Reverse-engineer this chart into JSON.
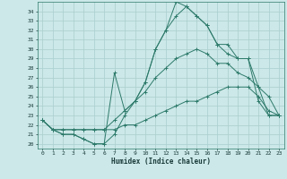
{
  "xlabel": "Humidex (Indice chaleur)",
  "bg_color": "#cce8e8",
  "line_color": "#2d7a6a",
  "grid_color": "#aacece",
  "xlim": [
    -0.5,
    23.5
  ],
  "ylim": [
    19.5,
    35.0
  ],
  "yticks": [
    20,
    21,
    22,
    23,
    24,
    25,
    26,
    27,
    28,
    29,
    30,
    31,
    32,
    33,
    34
  ],
  "xticks": [
    0,
    1,
    2,
    3,
    4,
    5,
    6,
    7,
    8,
    9,
    10,
    11,
    12,
    13,
    14,
    15,
    16,
    17,
    18,
    19,
    20,
    21,
    22,
    23
  ],
  "series": [
    [
      22.5,
      21.5,
      21.0,
      21.0,
      20.5,
      20.0,
      20.0,
      21.0,
      23.0,
      24.5,
      26.5,
      30.0,
      32.0,
      35.0,
      34.5,
      33.5,
      32.5,
      30.5,
      29.5,
      29.0,
      29.0,
      26.0,
      23.0,
      23.0
    ],
    [
      22.5,
      21.5,
      21.0,
      21.0,
      20.5,
      20.0,
      20.0,
      27.5,
      23.5,
      24.5,
      26.5,
      30.0,
      32.0,
      33.5,
      34.5,
      33.5,
      32.5,
      30.5,
      30.5,
      29.0,
      29.0,
      24.5,
      23.0,
      23.0
    ],
    [
      22.5,
      21.5,
      21.5,
      21.5,
      21.5,
      21.5,
      21.5,
      22.5,
      23.5,
      24.5,
      25.5,
      27.0,
      28.0,
      29.0,
      29.5,
      30.0,
      29.5,
      28.5,
      28.5,
      27.5,
      27.0,
      26.0,
      25.0,
      23.0
    ],
    [
      22.5,
      21.5,
      21.5,
      21.5,
      21.5,
      21.5,
      21.5,
      21.5,
      22.0,
      22.0,
      22.5,
      23.0,
      23.5,
      24.0,
      24.5,
      24.5,
      25.0,
      25.5,
      26.0,
      26.0,
      26.0,
      25.0,
      23.5,
      23.0
    ]
  ]
}
